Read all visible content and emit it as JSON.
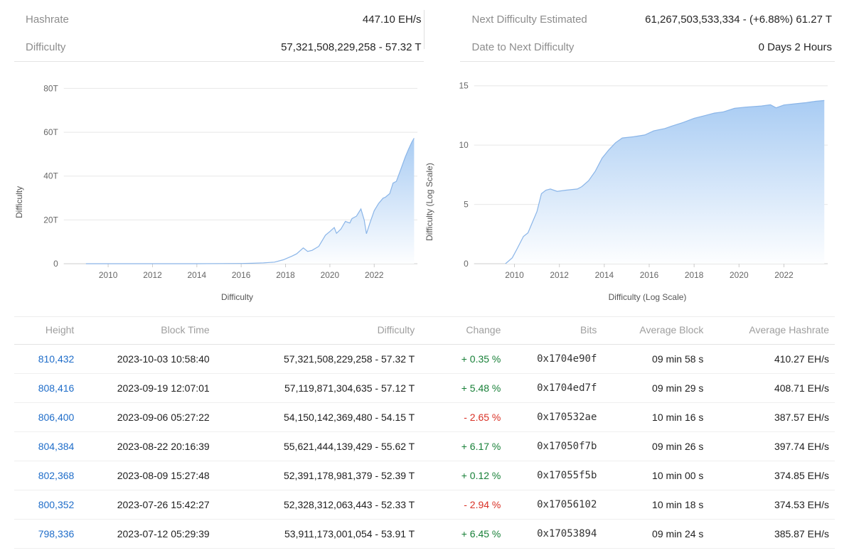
{
  "stats": {
    "left": [
      {
        "label": "Hashrate",
        "value": "447.10 EH/s"
      },
      {
        "label": "Difficulty",
        "value": "57,321,508,229,258 - 57.32 T"
      }
    ],
    "right": [
      {
        "label": "Next Difficulty Estimated",
        "value": "61,267,503,533,334 - (+6.88%) 61.27 T"
      },
      {
        "label": "Date to Next Difficulty",
        "value": "0 Days 2 Hours"
      }
    ]
  },
  "colors": {
    "link_blue": "#1f6dc9",
    "change_up_green": "#188038",
    "change_down_red": "#d93025",
    "area_top": "#a9ccf3",
    "area_bottom": "#fdfeff",
    "line": "#8ab5e8",
    "grid": "#e7e7e7",
    "axis": "#cccccc"
  },
  "chart_data": [
    {
      "type": "area",
      "xlabel": "Difficulty",
      "ylabel": "Difficulty",
      "x_range": [
        2008.0,
        2023.95
      ],
      "y_range": [
        0,
        85
      ],
      "x_ticks": [
        2010,
        2012,
        2014,
        2016,
        2018,
        2020,
        2022
      ],
      "y_ticks": [
        {
          "v": 0,
          "label": "0"
        },
        {
          "v": 20,
          "label": "20T"
        },
        {
          "v": 40,
          "label": "40T"
        },
        {
          "v": 60,
          "label": "60T"
        },
        {
          "v": 80,
          "label": "80T"
        }
      ],
      "points": [
        [
          2009.0,
          0
        ],
        [
          2010,
          0
        ],
        [
          2011,
          0
        ],
        [
          2012,
          0
        ],
        [
          2013,
          0.005
        ],
        [
          2014,
          0.01
        ],
        [
          2015,
          0.05
        ],
        [
          2016,
          0.1
        ],
        [
          2016.5,
          0.2
        ],
        [
          2017,
          0.35
        ],
        [
          2017.5,
          0.7
        ],
        [
          2017.9,
          1.8
        ],
        [
          2018.3,
          3.5
        ],
        [
          2018.5,
          4.5
        ],
        [
          2018.8,
          7.2
        ],
        [
          2019.0,
          5.6
        ],
        [
          2019.2,
          6.1
        ],
        [
          2019.5,
          7.9
        ],
        [
          2019.8,
          13.0
        ],
        [
          2020.0,
          14.7
        ],
        [
          2020.2,
          16.5
        ],
        [
          2020.3,
          13.9
        ],
        [
          2020.5,
          15.8
        ],
        [
          2020.7,
          19.3
        ],
        [
          2020.9,
          18.6
        ],
        [
          2021.0,
          20.6
        ],
        [
          2021.2,
          21.7
        ],
        [
          2021.4,
          25.0
        ],
        [
          2021.55,
          19.9
        ],
        [
          2021.65,
          13.7
        ],
        [
          2021.8,
          18.4
        ],
        [
          2022.0,
          24.2
        ],
        [
          2022.2,
          27.5
        ],
        [
          2022.4,
          29.9
        ],
        [
          2022.5,
          30.3
        ],
        [
          2022.7,
          32.0
        ],
        [
          2022.85,
          36.8
        ],
        [
          2023.0,
          37.6
        ],
        [
          2023.2,
          43.1
        ],
        [
          2023.4,
          48.7
        ],
        [
          2023.55,
          52.3
        ],
        [
          2023.7,
          55.6
        ],
        [
          2023.8,
          57.3
        ]
      ]
    },
    {
      "type": "area",
      "xlabel": "Difficulty (Log Scale)",
      "ylabel": "Difficulty (Log Scale)",
      "x_range": [
        2008.2,
        2023.95
      ],
      "y_range": [
        0,
        15.7
      ],
      "x_ticks": [
        2010,
        2012,
        2014,
        2016,
        2018,
        2020,
        2022
      ],
      "y_ticks": [
        {
          "v": 0,
          "label": "0"
        },
        {
          "v": 5,
          "label": "5"
        },
        {
          "v": 10,
          "label": "10"
        },
        {
          "v": 15,
          "label": "15"
        }
      ],
      "points": [
        [
          2009.6,
          0
        ],
        [
          2009.9,
          0.5
        ],
        [
          2010.1,
          1.2
        ],
        [
          2010.4,
          2.3
        ],
        [
          2010.6,
          2.6
        ],
        [
          2010.8,
          3.5
        ],
        [
          2011.0,
          4.4
        ],
        [
          2011.2,
          5.9
        ],
        [
          2011.4,
          6.2
        ],
        [
          2011.6,
          6.3
        ],
        [
          2011.9,
          6.1
        ],
        [
          2012.3,
          6.2
        ],
        [
          2012.8,
          6.3
        ],
        [
          2013.0,
          6.5
        ],
        [
          2013.3,
          7.0
        ],
        [
          2013.6,
          7.8
        ],
        [
          2013.9,
          8.9
        ],
        [
          2014.2,
          9.6
        ],
        [
          2014.5,
          10.2
        ],
        [
          2014.8,
          10.6
        ],
        [
          2015.3,
          10.7
        ],
        [
          2015.8,
          10.85
        ],
        [
          2016.2,
          11.2
        ],
        [
          2016.7,
          11.4
        ],
        [
          2017.0,
          11.6
        ],
        [
          2017.5,
          11.9
        ],
        [
          2018.0,
          12.26
        ],
        [
          2018.5,
          12.5
        ],
        [
          2018.9,
          12.7
        ],
        [
          2019.3,
          12.8
        ],
        [
          2019.8,
          13.1
        ],
        [
          2020.3,
          13.2
        ],
        [
          2021.0,
          13.3
        ],
        [
          2021.4,
          13.4
        ],
        [
          2021.65,
          13.14
        ],
        [
          2022.0,
          13.38
        ],
        [
          2022.5,
          13.48
        ],
        [
          2023.0,
          13.58
        ],
        [
          2023.4,
          13.69
        ],
        [
          2023.8,
          13.76
        ]
      ]
    }
  ],
  "table": {
    "columns": [
      "Height",
      "Block Time",
      "Difficulty",
      "Change",
      "Bits",
      "Average Block",
      "Average Hashrate"
    ],
    "rows": [
      {
        "height": "810,432",
        "block_time": "2023-10-03 10:58:40",
        "difficulty": "57,321,508,229,258 - 57.32 T",
        "change": "+ 0.35 %",
        "bits": "0x1704e90f",
        "avg_block": "09 min 58 s",
        "avg_hashrate": "410.27 EH/s"
      },
      {
        "height": "808,416",
        "block_time": "2023-09-19 12:07:01",
        "difficulty": "57,119,871,304,635 - 57.12 T",
        "change": "+ 5.48 %",
        "bits": "0x1704ed7f",
        "avg_block": "09 min 29 s",
        "avg_hashrate": "408.71 EH/s"
      },
      {
        "height": "806,400",
        "block_time": "2023-09-06 05:27:22",
        "difficulty": "54,150,142,369,480 - 54.15 T",
        "change": "- 2.65 %",
        "bits": "0x170532ae",
        "avg_block": "10 min 16 s",
        "avg_hashrate": "387.57 EH/s"
      },
      {
        "height": "804,384",
        "block_time": "2023-08-22 20:16:39",
        "difficulty": "55,621,444,139,429 - 55.62 T",
        "change": "+ 6.17 %",
        "bits": "0x17050f7b",
        "avg_block": "09 min 26 s",
        "avg_hashrate": "397.74 EH/s"
      },
      {
        "height": "802,368",
        "block_time": "2023-08-09 15:27:48",
        "difficulty": "52,391,178,981,379 - 52.39 T",
        "change": "+ 0.12 %",
        "bits": "0x17055f5b",
        "avg_block": "10 min 00 s",
        "avg_hashrate": "374.85 EH/s"
      },
      {
        "height": "800,352",
        "block_time": "2023-07-26 15:42:27",
        "difficulty": "52,328,312,063,443 - 52.33 T",
        "change": "- 2.94 %",
        "bits": "0x17056102",
        "avg_block": "10 min 18 s",
        "avg_hashrate": "374.53 EH/s"
      },
      {
        "height": "798,336",
        "block_time": "2023-07-12 05:29:39",
        "difficulty": "53,911,173,001,054 - 53.91 T",
        "change": "+ 6.45 %",
        "bits": "0x17053894",
        "avg_block": "09 min 24 s",
        "avg_hashrate": "385.87 EH/s"
      }
    ]
  }
}
